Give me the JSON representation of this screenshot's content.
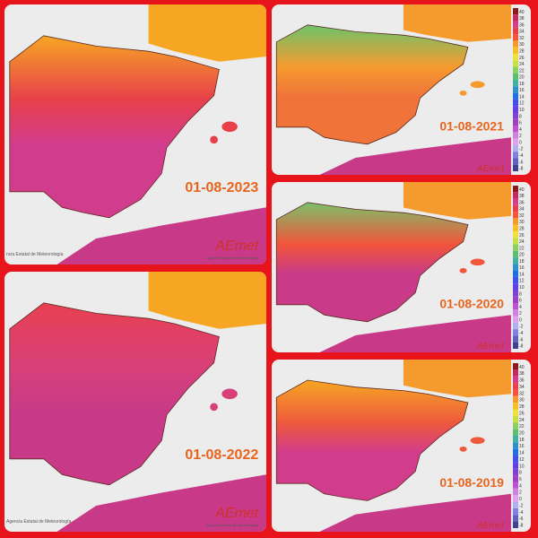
{
  "panels": [
    {
      "date": "01-08-2023",
      "logo": "AEmet",
      "agency": "Agencia Estatal de Meteorología",
      "credit": "ncia Estatal de Meteorología"
    },
    {
      "date": "01-08-2022",
      "logo": "AEmet",
      "agency": "Agencia Estatal de Meteorología",
      "credit": "Agencia Estatal de Meteorología"
    },
    {
      "date": "01-08-2021",
      "logo": "AEmet"
    },
    {
      "date": "01-08-2020",
      "logo": "AEmet"
    },
    {
      "date": "01-08-2019",
      "logo": "AEmet"
    }
  ],
  "scale": {
    "labels": [
      "40",
      "38",
      "36",
      "34",
      "32",
      "30",
      "28",
      "26",
      "24",
      "22",
      "20",
      "18",
      "16",
      "14",
      "12",
      "10",
      "8",
      "6",
      "4",
      "2",
      "0",
      "-2",
      "-4",
      "-6",
      "-8"
    ]
  }
}
